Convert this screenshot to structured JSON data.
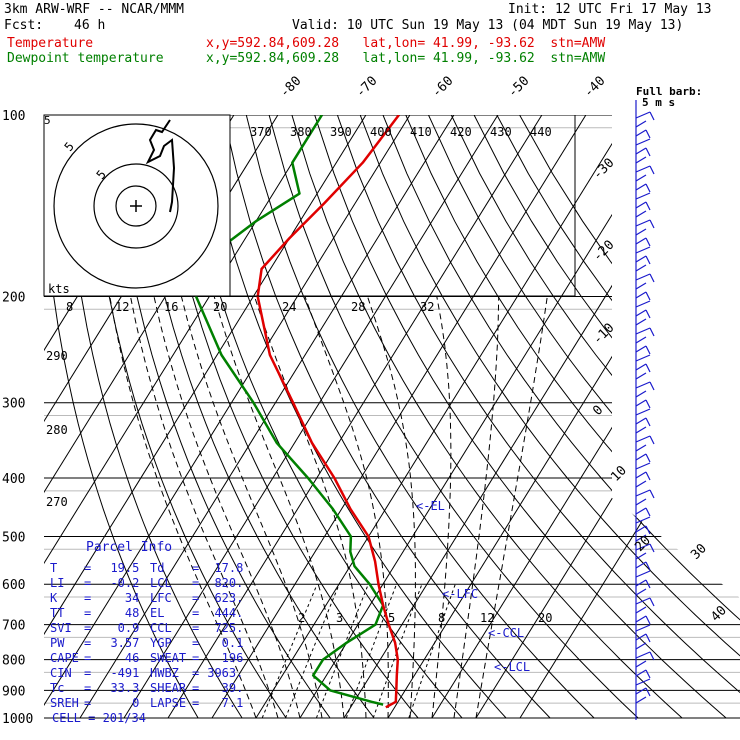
{
  "header": {
    "model": "3km ARW-WRF -- NCAR/MMM",
    "init": "Init: 12 UTC Fri 17 May 13",
    "fcst_label": "Fcst:",
    "fcst_value": "46 h",
    "valid": "Valid: 10 UTC Sun 19 May 13 (04 MDT Sun 19 May 13)",
    "temp_legend": "Temperature",
    "dew_legend": "Dewpoint temperature",
    "temp_info": "x,y=592.84,609.28   lat,lon= 41.99, -93.62  stn=AMW",
    "dew_info": "x,y=592.84,609.28   lat,lon= 41.99, -93.62  stn=AMW",
    "full_barb": "Full barb:",
    "full_barb_units": "5 m s"
  },
  "colors": {
    "temperature": "#e00000",
    "dewpoint": "#008000",
    "labels": "#1a1acc",
    "isotherm": "#000000",
    "grid": "#000000"
  },
  "labels": {
    "kts": "kts",
    "hodo_ring_5": "5",
    "hodo_ring_10": "5",
    "el": "<-EL",
    "lfc": "<-LFC",
    "ccl": "<-CCL",
    "lcl": "<-LCL"
  },
  "parcel": {
    "title": "Parcel Info",
    "rows": [
      [
        "T",
        "=",
        "19.5",
        "Td",
        "=",
        "17.8"
      ],
      [
        "LI",
        "=",
        "-0.2",
        "LCL",
        "=",
        "820."
      ],
      [
        "K",
        "=",
        "34",
        "LFC",
        "=",
        "623."
      ],
      [
        "TT",
        "=",
        "48",
        "EL",
        "=",
        "444."
      ],
      [
        "SVI",
        "=",
        "0.9",
        "CCL",
        "=",
        "725."
      ],
      [
        "PW",
        "=",
        "3.57",
        "YGP",
        "=",
        "0.1"
      ],
      [
        "CAPE",
        "=",
        "46",
        "SWEAT",
        "=",
        "196"
      ],
      [
        "CIN",
        "=",
        "-491",
        "HWBZ",
        "=",
        "3963."
      ],
      [
        "Tc",
        "=",
        "33.3",
        "SHEAR",
        "=",
        "39."
      ],
      [
        "SREH",
        "=",
        "0",
        "LAPSE",
        "=",
        "7.1"
      ]
    ],
    "cell": "CELL = 201/34"
  },
  "chart_data": {
    "type": "skew-t",
    "pressure_levels": [
      100,
      200,
      300,
      400,
      500,
      600,
      700,
      800,
      900,
      1000
    ],
    "isotherm_labels_top": [
      "-80",
      "-70",
      "-60",
      "-50",
      "-40"
    ],
    "isotherm_labels_right": [
      "-30",
      "-20",
      "-10",
      "0",
      "10",
      "20",
      "30",
      "40"
    ],
    "theta_labels": [
      "370",
      "380",
      "390",
      "400",
      "410",
      "420",
      "430",
      "440"
    ],
    "theta_left_labels": [
      "290",
      "280",
      "270"
    ],
    "mixing_ratio_labels": [
      "2",
      "3",
      "5",
      "8",
      "12",
      "20"
    ],
    "hodo_speed_labels": [
      "8",
      "12",
      "16",
      "20",
      "24",
      "28",
      "32"
    ],
    "temperature_profile": [
      {
        "p": 100,
        "t": -62.5
      },
      {
        "p": 120,
        "t": -64
      },
      {
        "p": 140,
        "t": -67
      },
      {
        "p": 160,
        "t": -70
      },
      {
        "p": 180,
        "t": -72
      },
      {
        "p": 200,
        "t": -69
      },
      {
        "p": 250,
        "t": -58
      },
      {
        "p": 300,
        "t": -46
      },
      {
        "p": 350,
        "t": -36
      },
      {
        "p": 400,
        "t": -26
      },
      {
        "p": 450,
        "t": -18
      },
      {
        "p": 500,
        "t": -10
      },
      {
        "p": 550,
        "t": -5
      },
      {
        "p": 600,
        "t": -1
      },
      {
        "p": 650,
        "t": 3
      },
      {
        "p": 700,
        "t": 7
      },
      {
        "p": 750,
        "t": 11
      },
      {
        "p": 800,
        "t": 14
      },
      {
        "p": 850,
        "t": 16
      },
      {
        "p": 900,
        "t": 18
      },
      {
        "p": 940,
        "t": 19.5
      },
      {
        "p": 960,
        "t": 18
      }
    ],
    "dewpoint_profile": [
      {
        "p": 100,
        "t": -80
      },
      {
        "p": 120,
        "t": -80
      },
      {
        "p": 135,
        "t": -74
      },
      {
        "p": 150,
        "t": -80
      },
      {
        "p": 165,
        "t": -84
      },
      {
        "p": 180,
        "t": -88
      },
      {
        "p": 200,
        "t": -83
      },
      {
        "p": 250,
        "t": -69
      },
      {
        "p": 300,
        "t": -55
      },
      {
        "p": 350,
        "t": -44
      },
      {
        "p": 400,
        "t": -32
      },
      {
        "p": 450,
        "t": -22
      },
      {
        "p": 500,
        "t": -14
      },
      {
        "p": 530,
        "t": -12
      },
      {
        "p": 560,
        "t": -9
      },
      {
        "p": 600,
        "t": -3
      },
      {
        "p": 650,
        "t": 3
      },
      {
        "p": 700,
        "t": 4
      },
      {
        "p": 750,
        "t": 0
      },
      {
        "p": 800,
        "t": -3
      },
      {
        "p": 850,
        "t": -3
      },
      {
        "p": 900,
        "t": 3
      },
      {
        "p": 940,
        "t": 14
      },
      {
        "p": 950,
        "t": 17
      }
    ]
  }
}
